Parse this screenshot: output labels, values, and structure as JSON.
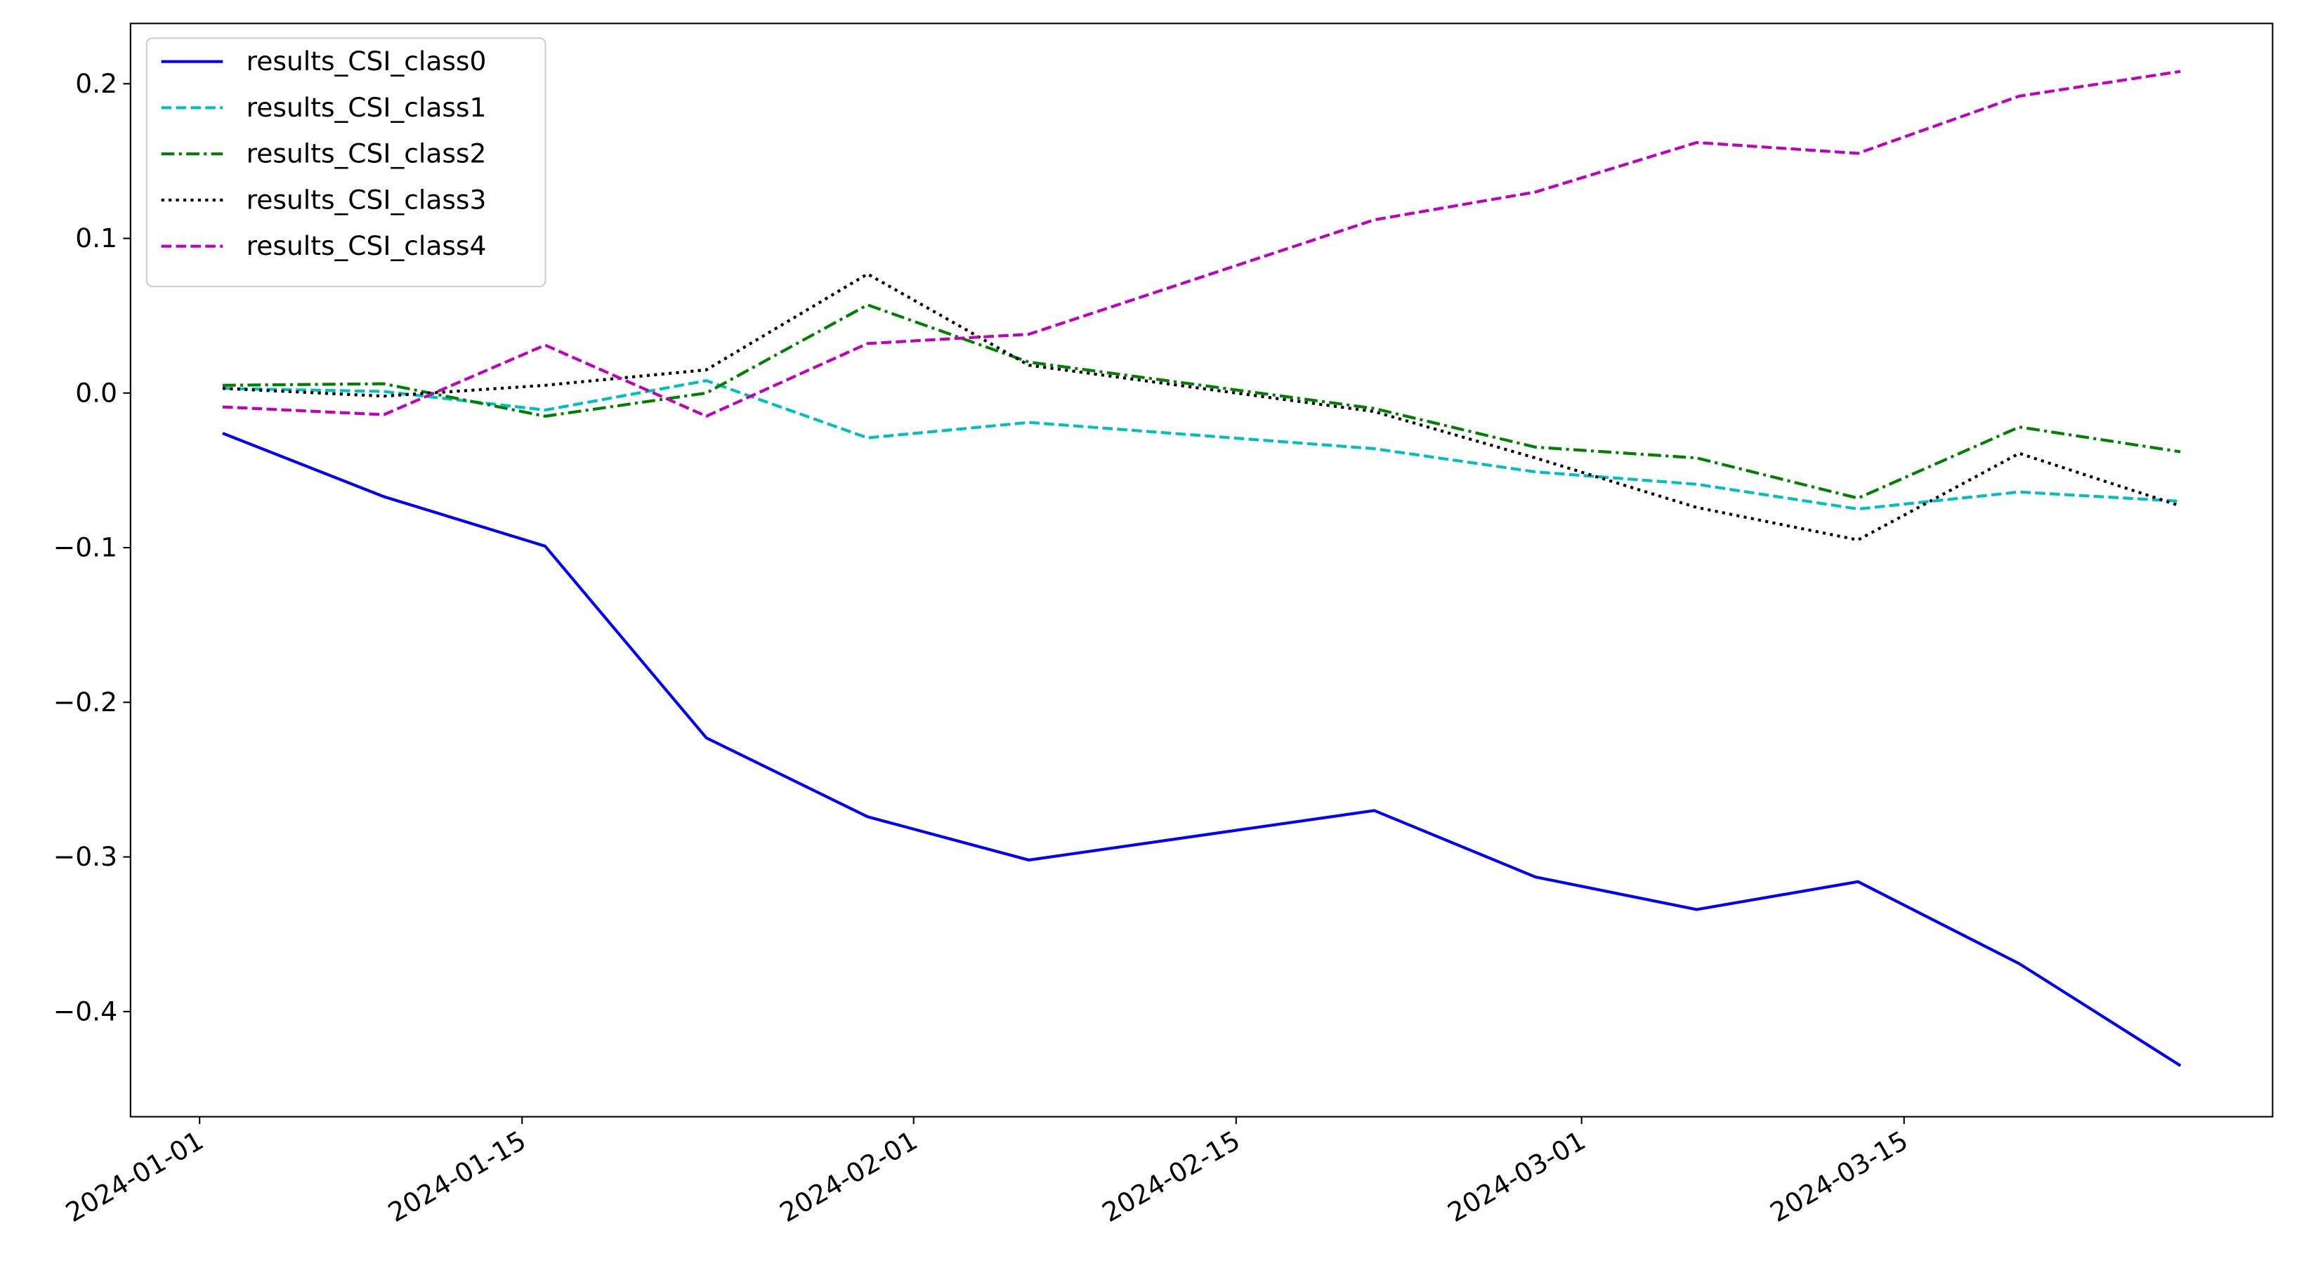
{
  "chart_data": {
    "type": "line",
    "x": [
      "2024-01-02",
      "2024-01-09",
      "2024-01-16",
      "2024-01-23",
      "2024-01-30",
      "2024-02-06",
      "2024-02-21",
      "2024-02-28",
      "2024-03-06",
      "2024-03-13",
      "2024-03-20",
      "2024-03-27"
    ],
    "series": [
      {
        "name": "results_CSI_class0",
        "color": "#0000ff",
        "linestyle": "solid",
        "values": [
          -0.026,
          -0.067,
          -0.099,
          -0.223,
          -0.274,
          -0.302,
          -0.27,
          -0.313,
          -0.334,
          -0.316,
          -0.369,
          -0.435
        ]
      },
      {
        "name": "results_CSI_class1",
        "color": "#00bfbf",
        "linestyle": "dashed",
        "values": [
          0.003,
          0.001,
          -0.011,
          0.008,
          -0.029,
          -0.019,
          -0.036,
          -0.051,
          -0.059,
          -0.075,
          -0.064,
          -0.07
        ]
      },
      {
        "name": "results_CSI_class2",
        "color": "#008000",
        "linestyle": "dashdot",
        "values": [
          0.005,
          0.006,
          -0.015,
          0.0,
          0.057,
          0.02,
          -0.01,
          -0.035,
          -0.042,
          -0.068,
          -0.022,
          -0.038
        ]
      },
      {
        "name": "results_CSI_class3",
        "color": "#000000",
        "linestyle": "dotted",
        "values": [
          0.003,
          -0.002,
          0.005,
          0.015,
          0.077,
          0.018,
          -0.012,
          -0.042,
          -0.074,
          -0.095,
          -0.039,
          -0.073
        ]
      },
      {
        "name": "results_CSI_class4",
        "color": "#bf00bf",
        "linestyle": "dashed",
        "values": [
          -0.009,
          -0.014,
          0.031,
          -0.015,
          0.032,
          0.038,
          0.112,
          0.13,
          0.162,
          0.155,
          0.192,
          0.208
        ]
      }
    ],
    "xlim": [
      "2023-12-29",
      "2024-03-31"
    ],
    "xticks": [
      "2024-01-01",
      "2024-01-15",
      "2024-02-01",
      "2024-02-15",
      "2024-03-01",
      "2024-03-15"
    ],
    "ylim": [
      -0.468,
      0.239
    ],
    "yticks": [
      {
        "value": -0.4,
        "label": "−0.4"
      },
      {
        "value": -0.3,
        "label": "−0.3"
      },
      {
        "value": -0.2,
        "label": "−0.2"
      },
      {
        "value": -0.1,
        "label": "−0.1"
      },
      {
        "value": 0,
        "label": "0.0"
      },
      0.1,
      0.2
    ],
    "legend": "upper left"
  }
}
